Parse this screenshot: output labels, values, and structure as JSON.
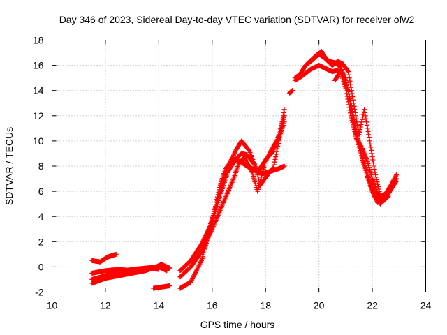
{
  "chart_data": {
    "type": "scatter",
    "title": "Day 346 of 2023, Sidereal Day-to-day VTEC variation (SDTVAR) for receiver ofw2",
    "xlabel": "GPS time / hours",
    "ylabel": "SDTVAR / TECUs",
    "xlim": [
      10,
      24
    ],
    "ylim": [
      -2,
      18
    ],
    "xticks": [
      "10",
      "12",
      "14",
      "16",
      "18",
      "20",
      "22",
      "24"
    ],
    "yticks": [
      "-2",
      "0",
      "2",
      "4",
      "6",
      "8",
      "10",
      "12",
      "14",
      "16",
      "18"
    ],
    "grid": true,
    "marker": "+",
    "color": "#ff0000",
    "series": [
      {
        "name": "trace-1",
        "x": [
          11.5,
          11.8,
          12.1,
          12.4
        ],
        "y": [
          0.5,
          0.4,
          0.8,
          1.0
        ]
      },
      {
        "name": "trace-2",
        "x": [
          11.5,
          12.0,
          12.5,
          13.0,
          13.5,
          14.0,
          14.3
        ],
        "y": [
          -0.5,
          -0.3,
          -0.2,
          -0.3,
          -0.1,
          0.0,
          -0.3
        ]
      },
      {
        "name": "trace-3",
        "x": [
          11.5,
          12.0,
          12.5,
          13.0,
          13.5,
          13.9,
          14.1,
          14.4
        ],
        "y": [
          -1.3,
          -0.9,
          -0.7,
          -0.5,
          -0.3,
          0.0,
          0.2,
          -0.1
        ]
      },
      {
        "name": "trace-4",
        "x": [
          11.5,
          12.0,
          12.5,
          13.0,
          13.5,
          14.0
        ],
        "y": [
          -1.0,
          -0.7,
          -0.4,
          -0.2,
          -0.1,
          -0.2
        ]
      },
      {
        "name": "trace-5",
        "x": [
          13.8,
          14.1,
          14.4
        ],
        "y": [
          -1.7,
          -1.6,
          -1.5
        ]
      },
      {
        "name": "trace-6",
        "x": [
          14.8,
          15.2,
          15.6,
          15.9,
          16.1,
          16.3,
          16.5,
          16.7,
          16.9,
          17.1,
          17.3,
          17.6,
          17.9,
          18.2,
          18.5,
          18.7
        ],
        "y": [
          -1.7,
          -1.2,
          0.5,
          2.8,
          4.6,
          6.5,
          7.8,
          8.3,
          8.5,
          8.3,
          8.0,
          7.7,
          7.4,
          7.6,
          7.8,
          8.0
        ]
      },
      {
        "name": "trace-7",
        "x": [
          14.8,
          15.2,
          15.6,
          16.0,
          16.3,
          16.6,
          16.9,
          17.1,
          17.3,
          17.6,
          17.8,
          18.0,
          18.3,
          18.5,
          18.7
        ],
        "y": [
          -0.3,
          0.5,
          1.8,
          3.5,
          5.7,
          7.6,
          8.6,
          9.0,
          8.9,
          8.1,
          6.5,
          7.1,
          7.9,
          10.0,
          12.5
        ]
      },
      {
        "name": "trace-8",
        "x": [
          14.8,
          15.2,
          15.6,
          16.0,
          16.4,
          16.8,
          17.0,
          17.2,
          17.5,
          17.7,
          18.0,
          18.3,
          18.5,
          18.7
        ],
        "y": [
          -0.8,
          0.0,
          1.2,
          3.0,
          5.0,
          7.0,
          8.2,
          8.7,
          7.5,
          6.0,
          8.4,
          9.6,
          10.2,
          11.5
        ]
      },
      {
        "name": "trace-9",
        "x": [
          15.6,
          15.8,
          16.0,
          16.3,
          16.6,
          16.9,
          17.1,
          17.4,
          17.7,
          18.0,
          18.3,
          18.5,
          18.7
        ],
        "y": [
          1.5,
          2.6,
          3.8,
          6.0,
          8.0,
          9.3,
          10.0,
          9.2,
          7.5,
          8.5,
          9.2,
          10.5,
          12.0
        ]
      },
      {
        "name": "trace-10",
        "x": [
          18.9,
          19.0
        ],
        "y": [
          13.8,
          14.0
        ]
      },
      {
        "name": "trace-11",
        "x": [
          19.1,
          19.3,
          19.5,
          19.8,
          20.0,
          20.2,
          20.4,
          20.6,
          20.8,
          21.0,
          21.2,
          21.4,
          21.6,
          21.8,
          22.0,
          22.2,
          22.4,
          22.6,
          22.8,
          22.9
        ],
        "y": [
          15.0,
          15.3,
          16.0,
          16.5,
          16.9,
          16.6,
          16.3,
          16.2,
          15.9,
          14.8,
          13.0,
          10.8,
          8.8,
          7.2,
          6.0,
          5.1,
          5.3,
          5.8,
          6.5,
          7.0
        ]
      },
      {
        "name": "trace-12",
        "x": [
          19.1,
          19.4,
          19.7,
          20.0,
          20.3,
          20.5,
          20.7,
          20.9,
          21.1,
          21.3,
          21.5,
          21.7,
          21.9,
          22.1,
          22.3,
          22.5,
          22.7,
          22.9
        ],
        "y": [
          14.8,
          15.2,
          15.7,
          16.0,
          15.7,
          15.5,
          15.6,
          15.3,
          14.0,
          11.5,
          9.5,
          8.2,
          6.8,
          5.6,
          5.0,
          5.5,
          6.2,
          6.8
        ]
      },
      {
        "name": "trace-13",
        "x": [
          19.6,
          19.9,
          20.1,
          20.3,
          20.5,
          20.7,
          20.9,
          21.1,
          21.3,
          21.5,
          21.7,
          21.9,
          22.1,
          22.3,
          22.5,
          22.7,
          22.9
        ],
        "y": [
          16.2,
          16.8,
          17.1,
          16.4,
          16.0,
          16.3,
          16.1,
          15.5,
          13.0,
          10.5,
          12.5,
          10.0,
          7.5,
          5.6,
          5.8,
          6.5,
          7.3
        ]
      },
      {
        "name": "trace-14",
        "x": [
          20.6,
          20.8,
          21.0,
          21.2,
          21.4,
          21.6,
          21.8,
          22.0,
          22.2,
          22.4,
          22.6
        ],
        "y": [
          14.8,
          15.5,
          14.2,
          12.0,
          10.2,
          9.5,
          8.5,
          7.0,
          5.8,
          5.2,
          5.6
        ]
      }
    ]
  }
}
